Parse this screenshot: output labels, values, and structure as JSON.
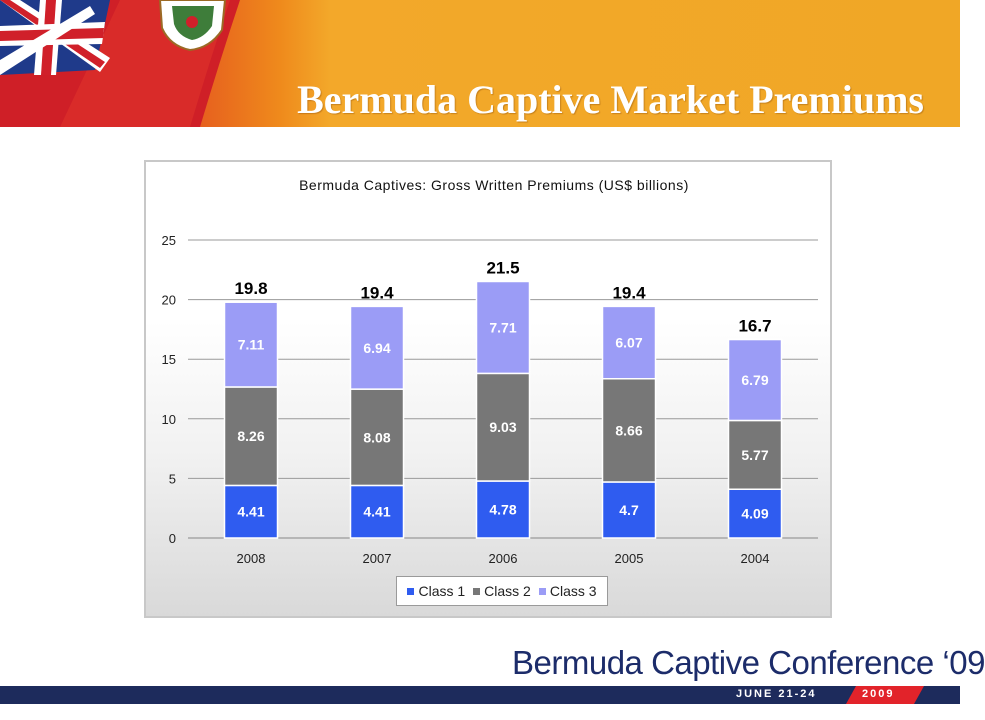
{
  "slide": {
    "title": "Bermuda Captive Market Premiums"
  },
  "footer": {
    "logo_text": "Bermuda Captive Conference ‘09",
    "date_text": "JUNE 21-24",
    "year_text": "2009"
  },
  "chart_data": {
    "type": "bar",
    "stacked": true,
    "title": "Bermuda Captives: Gross Written Premiums (US$ billions)",
    "xlabel": "",
    "ylabel": "",
    "categories": [
      "2008",
      "2007",
      "2006",
      "2005",
      "2004"
    ],
    "series": [
      {
        "name": "Class 1",
        "values": [
          4.41,
          4.41,
          4.78,
          4.7,
          4.09
        ],
        "labels": [
          "4.41",
          "4.41",
          "4.78",
          "4.7",
          "4.09"
        ],
        "color": "#2f5cf0"
      },
      {
        "name": "Class 2",
        "values": [
          8.26,
          8.08,
          9.03,
          8.66,
          5.77
        ],
        "labels": [
          "8.26",
          "8.08",
          "9.03",
          "8.66",
          "5.77"
        ],
        "color": "#777777"
      },
      {
        "name": "Class 3",
        "values": [
          7.11,
          6.94,
          7.71,
          6.07,
          6.79
        ],
        "labels": [
          "7.11",
          "6.94",
          "7.71",
          "6.07",
          "6.79"
        ],
        "color": "#9b9cf6"
      }
    ],
    "totals": [
      "19.8",
      "19.4",
      "21.5",
      "19.4",
      "16.7"
    ],
    "ylim": [
      0,
      25
    ],
    "yticks": [
      "0",
      "5",
      "10",
      "15",
      "20",
      "25"
    ],
    "grid": true,
    "legend_position": "bottom"
  }
}
